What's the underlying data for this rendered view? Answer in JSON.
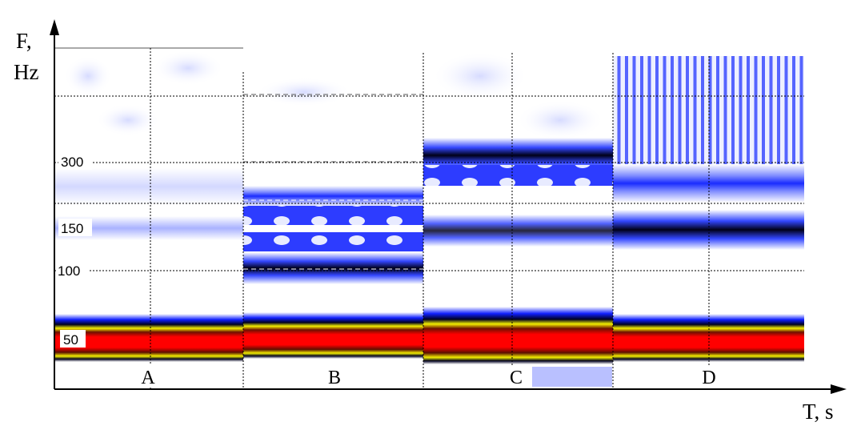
{
  "chart_data": {
    "type": "heatmap",
    "title": "",
    "xlabel": "T, s",
    "ylabel_lines": [
      "F,",
      "Hz"
    ],
    "ytick_labels": [
      "300",
      "150",
      "100",
      "50"
    ],
    "colormap": [
      "#ffffff",
      "#0000ff",
      "#000000",
      "#ffff00",
      "#ff0000"
    ],
    "panels": [
      {
        "label": "A",
        "bands": [
          {
            "freq_hz": 300,
            "intensity": 0.18,
            "color": "#c6ccff",
            "kind": "band"
          },
          {
            "freq_hz": 150,
            "intensity": 0.3,
            "color": "#8d97f0",
            "kind": "band"
          },
          {
            "freq_hz": 50,
            "intensity": 1.0,
            "color": "#ff0000",
            "kind": "core"
          }
        ]
      },
      {
        "label": "B",
        "bands": [
          {
            "freq_hz": 180,
            "intensity": 0.6,
            "color": "#3e4cff",
            "kind": "modulated"
          },
          {
            "freq_hz": 125,
            "intensity": 0.55,
            "color": "#3e4cff",
            "kind": "modulated"
          },
          {
            "freq_hz": 100,
            "intensity": 0.95,
            "color": "#000030",
            "kind": "band"
          },
          {
            "freq_hz": 50,
            "intensity": 1.0,
            "color": "#ff0000",
            "kind": "core"
          }
        ]
      },
      {
        "label": "C",
        "bands": [
          {
            "freq_hz": 300,
            "intensity": 1.0,
            "color": "#000018",
            "kind": "band"
          },
          {
            "freq_hz": 270,
            "intensity": 0.6,
            "color": "#2a3bff",
            "kind": "modulated"
          },
          {
            "freq_hz": 150,
            "intensity": 0.85,
            "color": "#0818c8",
            "kind": "band"
          },
          {
            "freq_hz": 50,
            "intensity": 1.0,
            "color": "#ff0000",
            "kind": "core"
          }
        ]
      },
      {
        "label": "D",
        "bands": [
          {
            "freq_hz": 400,
            "intensity": 0.45,
            "color": "#6f7cff",
            "kind": "striped"
          },
          {
            "freq_hz": 270,
            "intensity": 0.7,
            "color": "#1a2cff",
            "kind": "band"
          },
          {
            "freq_hz": 150,
            "intensity": 1.0,
            "color": "#000010",
            "kind": "band"
          },
          {
            "freq_hz": 50,
            "intensity": 1.0,
            "color": "#ff0000",
            "kind": "core"
          }
        ]
      }
    ]
  }
}
